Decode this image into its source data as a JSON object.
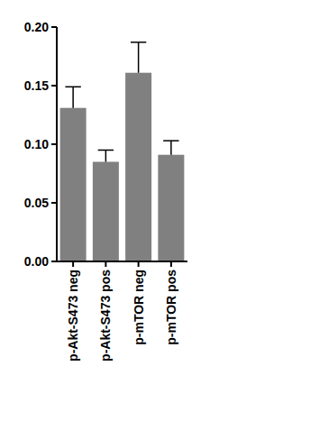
{
  "chart_data": {
    "type": "bar",
    "categories": [
      "p-Akt-S473 neg",
      "p-Akt-S473 pos",
      "p-mTOR neg",
      "p-mTOR pos"
    ],
    "values": [
      0.131,
      0.085,
      0.161,
      0.091
    ],
    "errors": [
      0.018,
      0.01,
      0.026,
      0.012
    ],
    "color": "#808080",
    "ylim": [
      0,
      0.2
    ],
    "yticks": [
      {
        "value": 0,
        "label": "0.00"
      },
      {
        "value": 0.05,
        "label": "0.05"
      },
      {
        "value": 0.1,
        "label": "0.10"
      },
      {
        "value": 0.15,
        "label": "0.15"
      },
      {
        "value": 0.2,
        "label": "0.20"
      }
    ],
    "grid": false
  }
}
